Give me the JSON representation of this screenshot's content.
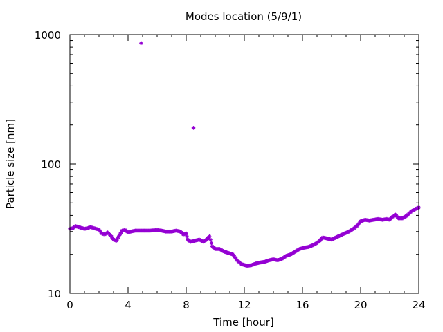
{
  "chart_data": {
    "type": "scatter",
    "title": "Modes location (5/9/1)",
    "xlabel": "Time [hour]",
    "ylabel": "Particle size [nm]",
    "x_ticks": [
      "0",
      "4",
      "8",
      "12",
      "16",
      "20",
      "24"
    ],
    "y_ticks": [
      "10",
      "100",
      "1000"
    ],
    "xlim": [
      0,
      24
    ],
    "ylim": [
      10,
      1000
    ],
    "y_scale": "log",
    "grid": false,
    "legend": "none",
    "marker_color": "#9400d3",
    "outliers": [
      {
        "x": 4.9,
        "y": 860
      },
      {
        "x": 8.5,
        "y": 190
      }
    ],
    "trend": [
      [
        0.0,
        31.5
      ],
      [
        0.2,
        31.8
      ],
      [
        0.4,
        33.0
      ],
      [
        0.6,
        32.5
      ],
      [
        0.8,
        32.0
      ],
      [
        1.0,
        31.5
      ],
      [
        1.2,
        31.8
      ],
      [
        1.4,
        32.5
      ],
      [
        1.6,
        32.0
      ],
      [
        1.8,
        31.5
      ],
      [
        2.0,
        31.0
      ],
      [
        2.2,
        29.0
      ],
      [
        2.4,
        28.5
      ],
      [
        2.6,
        29.5
      ],
      [
        2.8,
        28.0
      ],
      [
        3.0,
        26.0
      ],
      [
        3.2,
        25.5
      ],
      [
        3.4,
        28.0
      ],
      [
        3.6,
        30.5
      ],
      [
        3.8,
        30.8
      ],
      [
        4.0,
        29.5
      ],
      [
        4.2,
        30.0
      ],
      [
        4.5,
        30.5
      ],
      [
        5.0,
        30.5
      ],
      [
        5.5,
        30.5
      ],
      [
        6.0,
        30.8
      ],
      [
        6.3,
        30.5
      ],
      [
        6.6,
        30.0
      ],
      [
        7.0,
        30.0
      ],
      [
        7.3,
        30.5
      ],
      [
        7.6,
        30.0
      ],
      [
        7.8,
        28.5
      ],
      [
        8.0,
        29.0
      ],
      [
        8.1,
        26.0
      ],
      [
        8.3,
        25.0
      ],
      [
        8.6,
        25.5
      ],
      [
        8.9,
        26.0
      ],
      [
        9.2,
        25.0
      ],
      [
        9.4,
        26.0
      ],
      [
        9.6,
        27.5
      ],
      [
        9.8,
        23.0
      ],
      [
        10.0,
        22.0
      ],
      [
        10.3,
        22.0
      ],
      [
        10.6,
        21.0
      ],
      [
        10.9,
        20.5
      ],
      [
        11.2,
        20.0
      ],
      [
        11.5,
        18.0
      ],
      [
        11.8,
        16.8
      ],
      [
        12.2,
        16.3
      ],
      [
        12.5,
        16.5
      ],
      [
        12.8,
        17.0
      ],
      [
        13.1,
        17.3
      ],
      [
        13.4,
        17.5
      ],
      [
        13.7,
        18.0
      ],
      [
        14.0,
        18.3
      ],
      [
        14.3,
        18.0
      ],
      [
        14.6,
        18.5
      ],
      [
        14.9,
        19.5
      ],
      [
        15.2,
        20.0
      ],
      [
        15.5,
        21.0
      ],
      [
        15.8,
        22.0
      ],
      [
        16.1,
        22.5
      ],
      [
        16.4,
        22.8
      ],
      [
        16.7,
        23.5
      ],
      [
        17.0,
        24.5
      ],
      [
        17.2,
        25.5
      ],
      [
        17.4,
        27.0
      ],
      [
        17.7,
        26.5
      ],
      [
        18.0,
        26.0
      ],
      [
        18.3,
        27.0
      ],
      [
        18.6,
        28.0
      ],
      [
        18.9,
        29.0
      ],
      [
        19.2,
        30.0
      ],
      [
        19.5,
        31.5
      ],
      [
        19.8,
        33.5
      ],
      [
        20.0,
        36.0
      ],
      [
        20.3,
        37.0
      ],
      [
        20.6,
        36.5
      ],
      [
        20.9,
        37.0
      ],
      [
        21.2,
        37.5
      ],
      [
        21.5,
        37.0
      ],
      [
        21.8,
        37.5
      ],
      [
        22.0,
        37.0
      ],
      [
        22.2,
        39.0
      ],
      [
        22.4,
        40.5
      ],
      [
        22.6,
        38.0
      ],
      [
        22.9,
        38.0
      ],
      [
        23.2,
        40.0
      ],
      [
        23.5,
        43.0
      ],
      [
        23.8,
        45.0
      ],
      [
        24.0,
        46.0
      ]
    ]
  }
}
